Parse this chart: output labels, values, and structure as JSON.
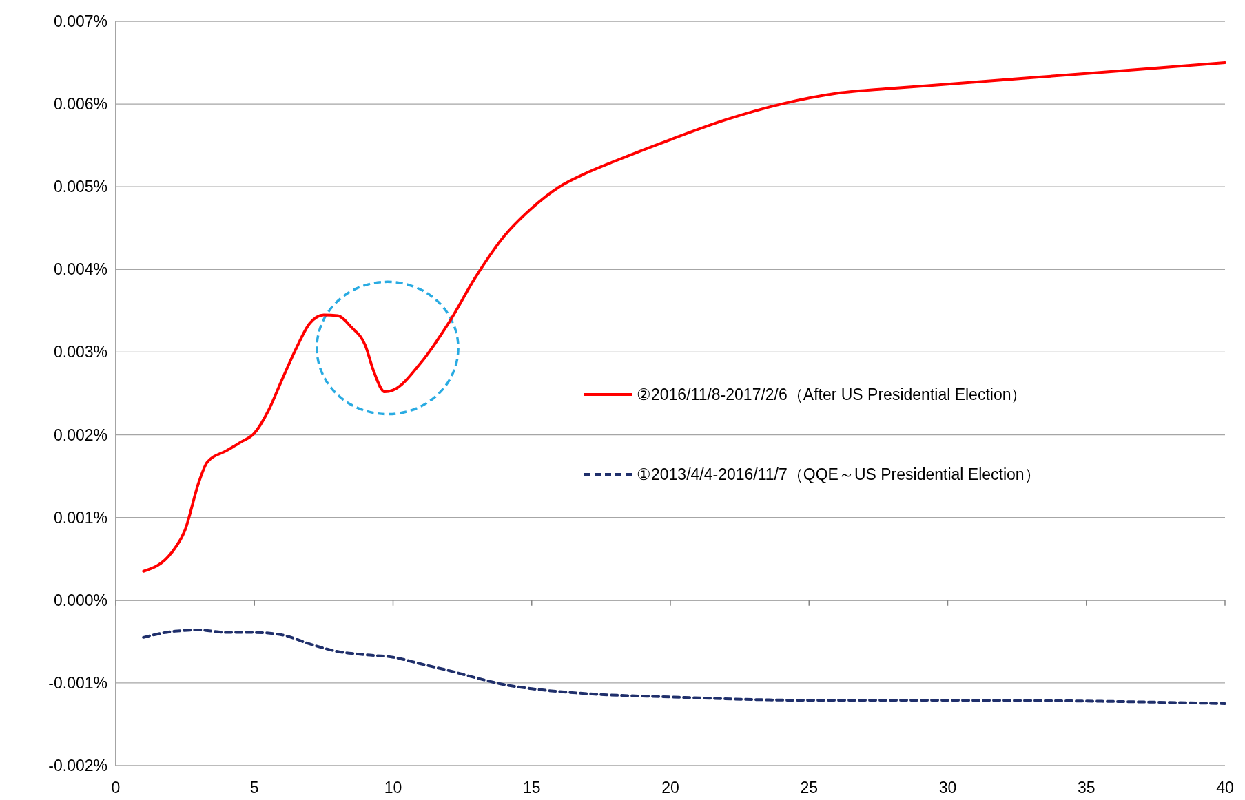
{
  "chart_data": {
    "type": "line",
    "xlim": [
      0,
      40
    ],
    "xticks": [
      0,
      5,
      10,
      15,
      20,
      25,
      30,
      35,
      40
    ],
    "ylim": [
      -0.002,
      0.007
    ],
    "yticks": [
      {
        "value": -0.002,
        "label": "-0.002%"
      },
      {
        "value": -0.001,
        "label": "-0.001%"
      },
      {
        "value": 0,
        "label": "0.000%"
      },
      {
        "value": 0.001,
        "label": "0.001%"
      },
      {
        "value": 0.002,
        "label": "0.002%"
      },
      {
        "value": 0.003,
        "label": "0.003%"
      },
      {
        "value": 0.004,
        "label": "0.004%"
      },
      {
        "value": 0.005,
        "label": "0.005%"
      },
      {
        "value": 0.006,
        "label": "0.006%"
      },
      {
        "value": 0.007,
        "label": "0.007%"
      }
    ],
    "grid": "y",
    "legend": "right",
    "marker": "none",
    "series": [
      {
        "name": "②2016/11/8-2017/2/6（After US Presidential Election）",
        "color": "#ff0000",
        "line_style": "solid",
        "x": [
          1,
          2,
          2.5,
          3,
          3.3,
          4,
          4.5,
          5,
          5.5,
          6,
          6.5,
          7,
          7.5,
          8,
          8.5,
          9,
          9.3,
          9.7,
          10,
          11,
          12,
          13,
          14,
          15,
          16,
          17,
          18,
          20,
          22,
          24,
          26,
          28,
          30,
          35,
          40
        ],
        "values": [
          0.00035,
          0.00057,
          0.00085,
          0.00143,
          0.00167,
          0.00181,
          0.00191,
          0.00202,
          0.00229,
          0.00267,
          0.00304,
          0.00335,
          0.00345,
          0.00344,
          0.0033,
          0.00308,
          0.00277,
          0.00252,
          0.00254,
          0.00287,
          0.00335,
          0.00392,
          0.0044,
          0.00474,
          0.005,
          0.00517,
          0.00531,
          0.00557,
          0.00581,
          0.006,
          0.00613,
          0.00619,
          0.00624,
          0.00637,
          0.0065
        ]
      },
      {
        "name": "①2013/4/4-2016/11/7（QQE～US Presidential Election）",
        "color": "#1f2f6b",
        "line_style": "dashed",
        "x": [
          1,
          2,
          3,
          4,
          5,
          6,
          7,
          8,
          9,
          10,
          11,
          12,
          13,
          14,
          15,
          17,
          20,
          25,
          30,
          35,
          40
        ],
        "values": [
          -0.00045,
          -0.00038,
          -0.00036,
          -0.00039,
          -0.00039,
          -0.00042,
          -0.00053,
          -0.00062,
          -0.00066,
          -0.00069,
          -0.00077,
          -0.00085,
          -0.00094,
          -0.00102,
          -0.00107,
          -0.00113,
          -0.00117,
          -0.00121,
          -0.00121,
          -0.00122,
          -0.00125
        ]
      }
    ]
  }
}
